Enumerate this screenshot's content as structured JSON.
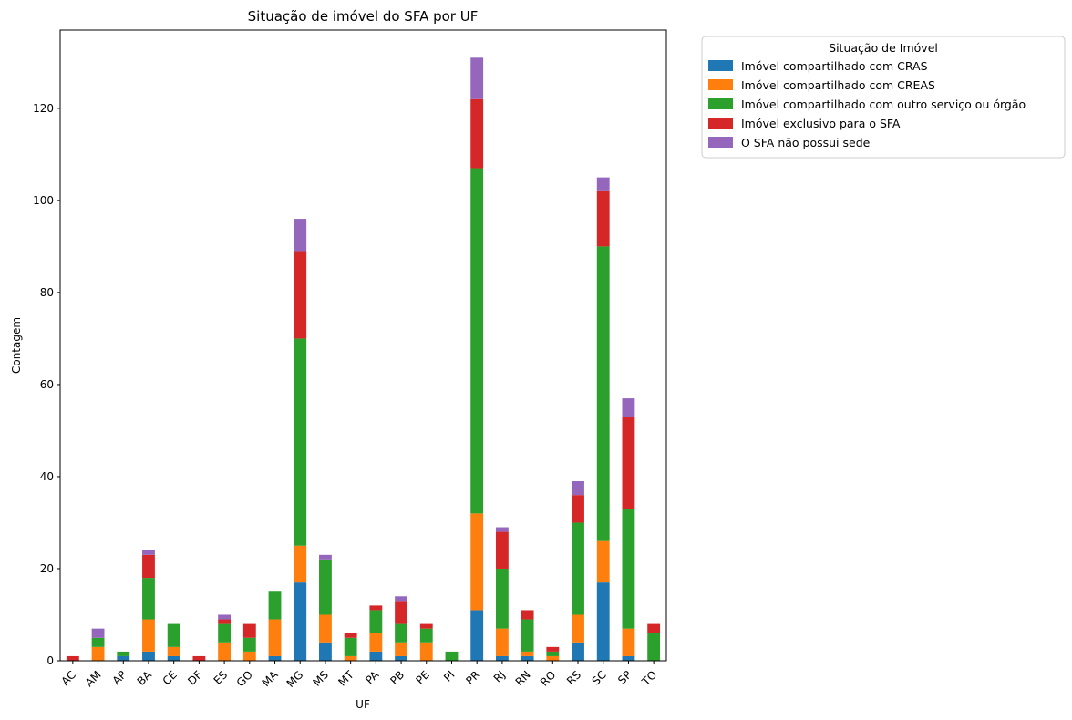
{
  "chart_data": {
    "type": "bar",
    "stacked": true,
    "title": "Situação de imóvel do SFA por UF",
    "xlabel": "UF",
    "ylabel": "Contagem",
    "ylim": [
      0,
      137
    ],
    "yticks": [
      0,
      20,
      40,
      60,
      80,
      100,
      120
    ],
    "categories": [
      "AC",
      "AM",
      "AP",
      "BA",
      "CE",
      "DF",
      "ES",
      "GO",
      "MA",
      "MG",
      "MS",
      "MT",
      "PA",
      "PB",
      "PE",
      "PI",
      "PR",
      "RJ",
      "RN",
      "RO",
      "RS",
      "SC",
      "SP",
      "TO"
    ],
    "series": [
      {
        "name": "Imóvel compartilhado com CRAS",
        "color": "#1f77b4",
        "values": [
          0,
          0,
          1,
          2,
          1,
          0,
          0,
          0,
          1,
          17,
          4,
          0,
          2,
          1,
          0,
          0,
          11,
          1,
          1,
          0,
          4,
          17,
          1,
          0
        ]
      },
      {
        "name": "Imóvel compartilhado com CREAS",
        "color": "#ff7f0e",
        "values": [
          0,
          3,
          0,
          7,
          2,
          0,
          4,
          2,
          8,
          8,
          6,
          1,
          4,
          3,
          4,
          0,
          21,
          6,
          1,
          1,
          6,
          9,
          6,
          0
        ]
      },
      {
        "name": "Imóvel compartilhado com outro serviço ou órgão",
        "color": "#2ca02c",
        "values": [
          0,
          2,
          1,
          9,
          5,
          0,
          4,
          3,
          6,
          45,
          12,
          4,
          5,
          4,
          3,
          2,
          75,
          13,
          7,
          1,
          20,
          64,
          26,
          6
        ]
      },
      {
        "name": "Imóvel exclusivo para o SFA",
        "color": "#d62728",
        "values": [
          1,
          0,
          0,
          5,
          0,
          1,
          1,
          3,
          0,
          19,
          0,
          1,
          1,
          5,
          1,
          0,
          15,
          8,
          2,
          1,
          6,
          12,
          20,
          2
        ]
      },
      {
        "name": "O SFA não possui sede",
        "color": "#9467bd",
        "values": [
          0,
          2,
          0,
          1,
          0,
          0,
          1,
          0,
          0,
          7,
          1,
          0,
          0,
          1,
          0,
          0,
          9,
          1,
          0,
          0,
          3,
          3,
          4,
          0
        ]
      }
    ],
    "legend_title": "Situação de Imóvel",
    "legend_position": "outside-top-right"
  }
}
